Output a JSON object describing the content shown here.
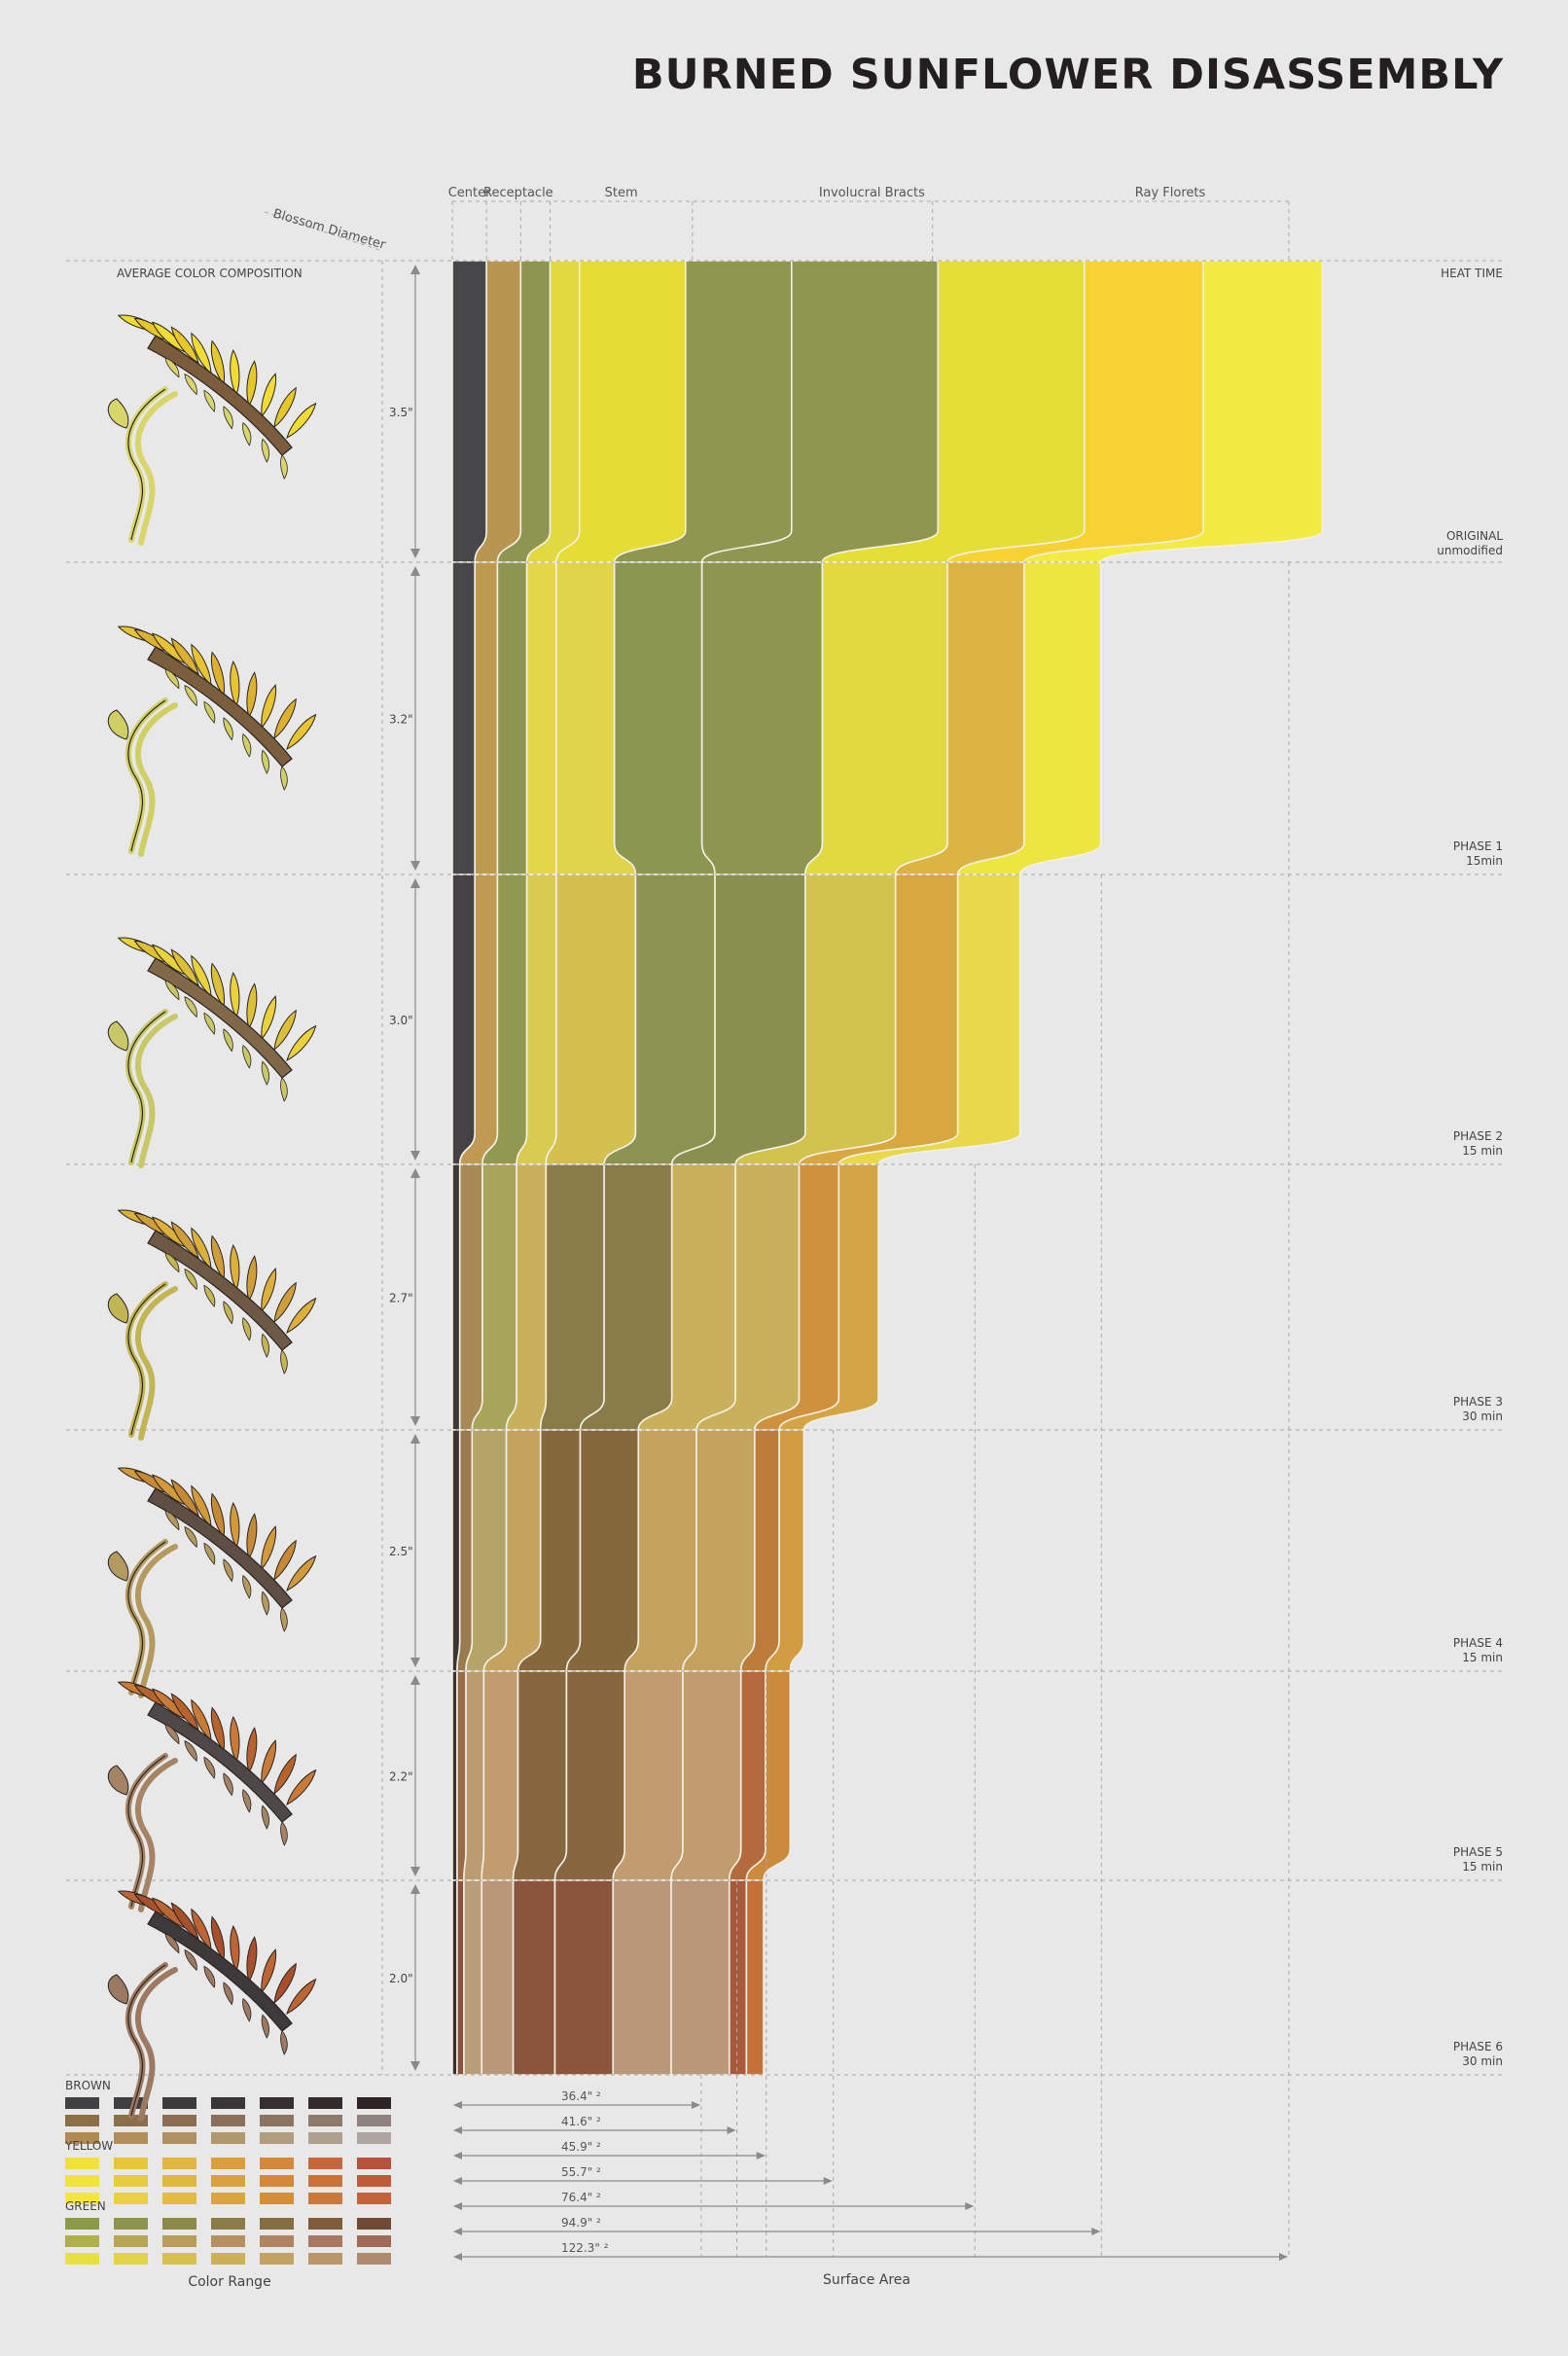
{
  "title": "BURNED SUNFLOWER DISASSEMBLY",
  "labels": {
    "blossom_diameter": "Blossom Diameter",
    "avg_color": "AVERAGE COLOR COMPOSITION",
    "heat_time": "HEAT TIME",
    "color_range": "Color Range",
    "surface_area": "Surface Area"
  },
  "chart_data": {
    "type": "area",
    "title": "BURNED SUNFLOWER DISASSEMBLY",
    "categories": [
      "Center",
      "Receptacle",
      "Stem",
      "Involucral Bracts",
      "Ray Florets"
    ],
    "phases": [
      {
        "name": "ORIGINAL",
        "time": "unmodified",
        "diameter": "3.5\"",
        "surface_area": "122.3\" ²",
        "surface_value": 122.3
      },
      {
        "name": "PHASE 1",
        "time": "15min",
        "diameter": "3.2\"",
        "surface_area": "94.9\" ²",
        "surface_value": 94.9
      },
      {
        "name": "PHASE 2",
        "time": "15 min",
        "diameter": "3.0\"",
        "surface_area": "76.4\" ²",
        "surface_value": 76.4
      },
      {
        "name": "PHASE 3",
        "time": "30 min",
        "diameter": "2.7\"",
        "surface_area": "55.7\" ²",
        "surface_value": 55.7
      },
      {
        "name": "PHASE 4",
        "time": "15 min",
        "diameter": "2.5\"",
        "surface_area": "45.9\" ²",
        "surface_value": 45.9
      },
      {
        "name": "PHASE 5",
        "time": "15 min",
        "diameter": "2.2\"",
        "surface_area": "41.6\" ²",
        "surface_value": 41.6
      },
      {
        "name": "PHASE 6",
        "time": "30 min",
        "diameter": "2.0\"",
        "surface_area": "36.4\" ²",
        "surface_value": 36.4
      }
    ],
    "bands": [
      {
        "category": "Center",
        "widths": [
          5.0,
          3.3,
          3.3,
          1.1,
          1.1,
          0.7,
          0.7
        ],
        "colors": [
          "#47474a",
          "#47464a",
          "#444245",
          "#3e3a3a",
          "#3c3433",
          "#3a3232",
          "#3a2f2f"
        ]
      },
      {
        "category": "Center",
        "widths": [
          5.0,
          3.3,
          3.3,
          3.3,
          1.8,
          1.3,
          1.0
        ],
        "colors": [
          "#b89550",
          "#bd9a50",
          "#c09a52",
          "#a78a55",
          "#9a7a4f",
          "#9a6b45",
          "#8e5038"
        ]
      },
      {
        "category": "Receptacle",
        "widths": [
          4.3,
          4.3,
          4.3,
          5.0,
          5.0,
          2.6,
          2.6
        ],
        "colors": [
          "#8c9650",
          "#8c9650",
          "#919850",
          "#a8a45a",
          "#b4a468",
          "#ba9c70",
          "#b99e7a"
        ]
      },
      {
        "category": "Stem",
        "widths": [
          4.3,
          4.3,
          4.3,
          4.3,
          5.0,
          5.0,
          4.6
        ],
        "colors": [
          "#e2d840",
          "#e3d649",
          "#d9cb52",
          "#c9b05a",
          "#c4a35f",
          "#c09c6f",
          "#b89878"
        ]
      },
      {
        "category": "Stem",
        "widths": [
          15.5,
          8.5,
          11.6,
          8.5,
          5.8,
          7.1,
          6.1
        ],
        "colors": [
          "#e5dd36",
          "#e0d44a",
          "#d4c04f",
          "#8a7c48",
          "#85693c",
          "#886640",
          "#8a553c"
        ]
      },
      {
        "category": "Stem",
        "widths": [
          15.5,
          12.8,
          11.6,
          9.9,
          8.5,
          8.5,
          8.5
        ],
        "colors": [
          "#8d9750",
          "#8b9650",
          "#8c9250",
          "#8a7c48",
          "#85693c",
          "#886640",
          "#8a553c"
        ]
      },
      {
        "category": "Involucral Bracts",
        "widths": [
          21.4,
          17.6,
          13.2,
          9.3,
          8.5,
          8.5,
          8.5
        ],
        "colors": [
          "#8d9750",
          "#8c9650",
          "#89904f",
          "#c9b05a",
          "#c4a35f",
          "#c09c6f",
          "#b89878"
        ]
      },
      {
        "category": "Involucral Bracts",
        "widths": [
          21.4,
          18.3,
          13.2,
          9.3,
          8.5,
          8.5,
          8.5
        ],
        "colors": [
          "#e5de36",
          "#e2d840",
          "#d2c34e",
          "#c9b05a",
          "#c4a35f",
          "#c09c6f",
          "#b89878"
        ]
      },
      {
        "category": "Ray Florets",
        "widths": [
          17.4,
          11.2,
          9.1,
          5.8,
          3.6,
          3.6,
          2.5
        ],
        "colors": [
          "#f6d233",
          "#ddb444",
          "#d9a740",
          "#cf913e",
          "#bd7c3c",
          "#b36a3d",
          "#a85a3a"
        ]
      },
      {
        "category": "Ray Florets",
        "widths": [
          17.4,
          11.2,
          9.1,
          5.8,
          3.6,
          3.6,
          2.5
        ],
        "colors": [
          "#f4ea44",
          "#ede641",
          "#e8d94a",
          "#d4a545",
          "#d29c43",
          "#cc8a3c",
          "#c47037"
        ]
      }
    ],
    "xlabel": "Surface Area",
    "ylabel": "HEAT TIME"
  },
  "color_range": {
    "title": "Color Range",
    "groups": [
      {
        "label": "BROWN",
        "rows": [
          [
            "#414042",
            "#3f3e40",
            "#3c3a3b",
            "#3a3536",
            "#362f31",
            "#332b2c",
            "#2e2425"
          ],
          [
            "#8b6f47",
            "#8b6e4a",
            "#8a6e50",
            "#8a7058",
            "#8b7562",
            "#8c7a6c",
            "#8e8280"
          ],
          [
            "#b08a4e",
            "#b28e58",
            "#b09262",
            "#b0986e",
            "#b09d7e",
            "#aea08f",
            "#aea4a2"
          ]
        ]
      },
      {
        "label": "YELLOW",
        "rows": [
          [
            "#f2e03a",
            "#e8c63c",
            "#e2b53e",
            "#dc9e3c",
            "#d6883a",
            "#c9663a",
            "#b8523a"
          ],
          [
            "#f2e23c",
            "#e6cc3e",
            "#e0b840",
            "#d9a23e",
            "#d28a3a",
            "#c87238",
            "#bd5c36"
          ],
          [
            "#f4e63a",
            "#e8d03e",
            "#e2be40",
            "#daa43e",
            "#d48e3a",
            "#cc7838",
            "#c26236"
          ]
        ]
      },
      {
        "label": "GREEN",
        "rows": [
          [
            "#8c9a48",
            "#8d934a",
            "#8c8a49",
            "#8a7c46",
            "#856d42",
            "#7e5c3c",
            "#704a34"
          ],
          [
            "#b0b048",
            "#b4a854",
            "#b89c5a",
            "#b69060",
            "#b08462",
            "#a87662",
            "#a06a5a"
          ],
          [
            "#e6e040",
            "#e2d448",
            "#d6c04e",
            "#ccb058",
            "#c2a262",
            "#b8966a",
            "#ae8a6e"
          ]
        ]
      }
    ]
  },
  "flower_colors": [
    {
      "petal": "#f0dc32",
      "petal2": "#e6c82a",
      "disc": "#7b5c3c",
      "stem": "#d8d66a"
    },
    {
      "petal": "#e8c432",
      "petal2": "#ddb030",
      "disc": "#7a5e3e",
      "stem": "#cfcf64"
    },
    {
      "petal": "#ead23c",
      "petal2": "#dcc038",
      "disc": "#806848",
      "stem": "#c8c868"
    },
    {
      "petal": "#dcb03a",
      "petal2": "#cf9e3a",
      "disc": "#6e5a44",
      "stem": "#c2b554"
    },
    {
      "petal": "#d29a3a",
      "petal2": "#c68a36",
      "disc": "#5e4e44",
      "stem": "#b59a60"
    },
    {
      "petal": "#c97a36",
      "petal2": "#b8622e",
      "disc": "#4e4848",
      "stem": "#a58466"
    },
    {
      "petal": "#bd6634",
      "petal2": "#a8502c",
      "disc": "#3e3a3c",
      "stem": "#9c7a62"
    }
  ]
}
